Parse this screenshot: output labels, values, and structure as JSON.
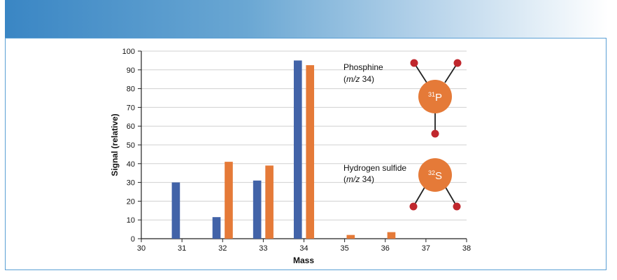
{
  "chart_data": {
    "type": "bar",
    "title": "",
    "xlabel": "Mass",
    "ylabel": "Signal (relative)",
    "xlim": [
      30,
      38
    ],
    "ylim": [
      0,
      100
    ],
    "x_ticks": [
      "30",
      "31",
      "32",
      "33",
      "34",
      "35",
      "36",
      "37",
      "38"
    ],
    "y_ticks": [
      "0",
      "10",
      "20",
      "30",
      "40",
      "50",
      "60",
      "70",
      "80",
      "90",
      "100"
    ],
    "categories": [
      31,
      32,
      33,
      34,
      35,
      36
    ],
    "series": [
      {
        "name": "Hydrogen sulfide",
        "color": "#4263a8",
        "values": [
          30,
          11.5,
          31,
          95,
          0,
          0
        ]
      },
      {
        "name": "Phosphine",
        "color": "#e57a38",
        "values": [
          0,
          41,
          39,
          92.5,
          2,
          3.5
        ]
      }
    ],
    "annotations": {
      "phosphine": {
        "name": "Phosphine",
        "mz_prefix": "(",
        "mz_italic": "m/z",
        "mz_value": " 34)",
        "atom_mass": "31",
        "atom_symbol": "P"
      },
      "hydrogen_sulfide": {
        "name": "Hydrogen sulfide",
        "mz_prefix": "(",
        "mz_italic": "m/z",
        "mz_value": " 34)",
        "atom_mass": "32",
        "atom_symbol": "S"
      }
    },
    "colors": {
      "atom": "#e57a38",
      "hydrogen": "#c0272d",
      "bond": "#222222",
      "axis": "#222222"
    }
  }
}
